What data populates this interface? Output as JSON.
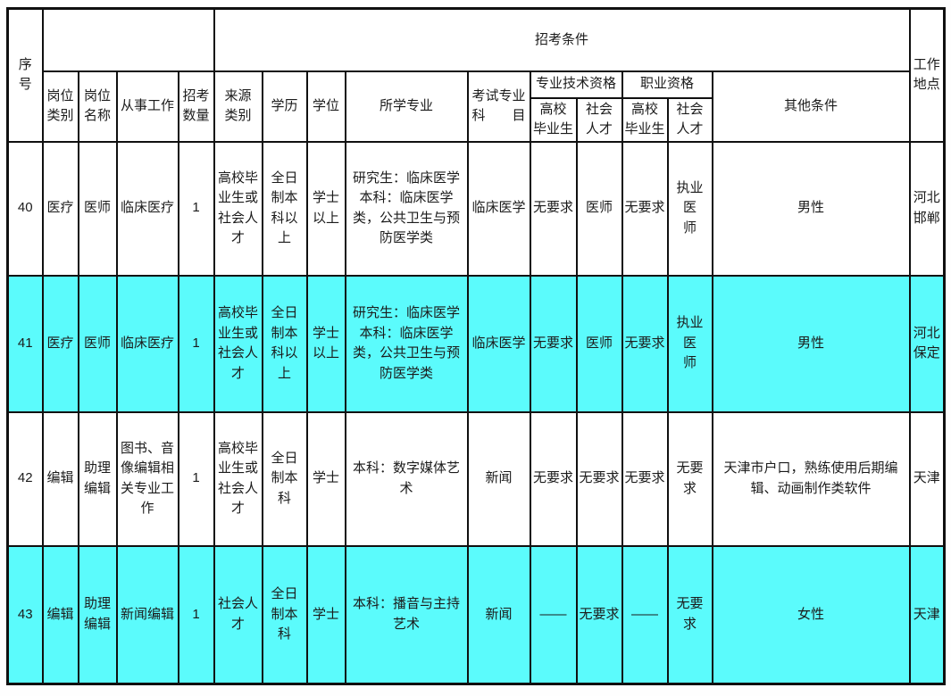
{
  "table": {
    "highlight_color": "#5bfbfc",
    "border_color": "#101010",
    "header": {
      "serial": "序\n号",
      "conditions_group": "招考条件",
      "location": "工作\n地点",
      "category": "岗位\n类别",
      "name": "岗位\n名称",
      "work": "从事工作",
      "count": "招考\n数量",
      "source": "来源\n类别",
      "education": "学历",
      "degree": "学位",
      "major": "所学专业",
      "exam_subject": "考试专业\n科　　目",
      "prof_tech": "专业技术资格",
      "vocational": "职业资格",
      "grad": "高校\n毕业生",
      "social": "社会\n人才",
      "other": "其他条件"
    },
    "rows": [
      {
        "highlight": false,
        "cells": [
          "40",
          "医疗",
          "医师",
          "临床医疗",
          "1",
          "高校毕\n业生或\n社会人\n才",
          "全日\n制本\n科以\n上",
          "学士\n以上",
          "研究生：临床医学\n本科：临床医学\n类，公共卫生与预\n防医学类",
          "临床医学",
          "无要求",
          "医师",
          "无要求",
          "执业医\n师",
          "男性",
          "河北\n邯郸"
        ]
      },
      {
        "highlight": true,
        "cells": [
          "41",
          "医疗",
          "医师",
          "临床医疗",
          "1",
          "高校毕\n业生或\n社会人\n才",
          "全日\n制本\n科以\n上",
          "学士\n以上",
          "研究生：临床医学\n本科：临床医学\n类，公共卫生与预\n防医学类",
          "临床医学",
          "无要求",
          "医师",
          "无要求",
          "执业医\n师",
          "男性",
          "河北\n保定"
        ]
      },
      {
        "highlight": false,
        "cells": [
          "42",
          "编辑",
          "助理\n编辑",
          "图书、音\n像编辑相\n关专业工\n作",
          "1",
          "高校毕\n业生或\n社会人\n才",
          "全日\n制本\n科",
          "学士",
          "本科：数字媒体艺\n术",
          "新闻",
          "无要求",
          "无要求",
          "无要求",
          "无要求",
          "天津市户口，熟练使用后期编\n辑、动画制作类软件",
          "天津"
        ]
      },
      {
        "highlight": true,
        "cells": [
          "43",
          "编辑",
          "助理\n编辑",
          "新闻编辑",
          "1",
          "社会人\n才",
          "全日\n制本\n科",
          "学士",
          "本科：播音与主持\n艺术",
          "新闻",
          "——",
          "无要求",
          "——",
          "无要求",
          "女性",
          "天津"
        ]
      }
    ]
  }
}
